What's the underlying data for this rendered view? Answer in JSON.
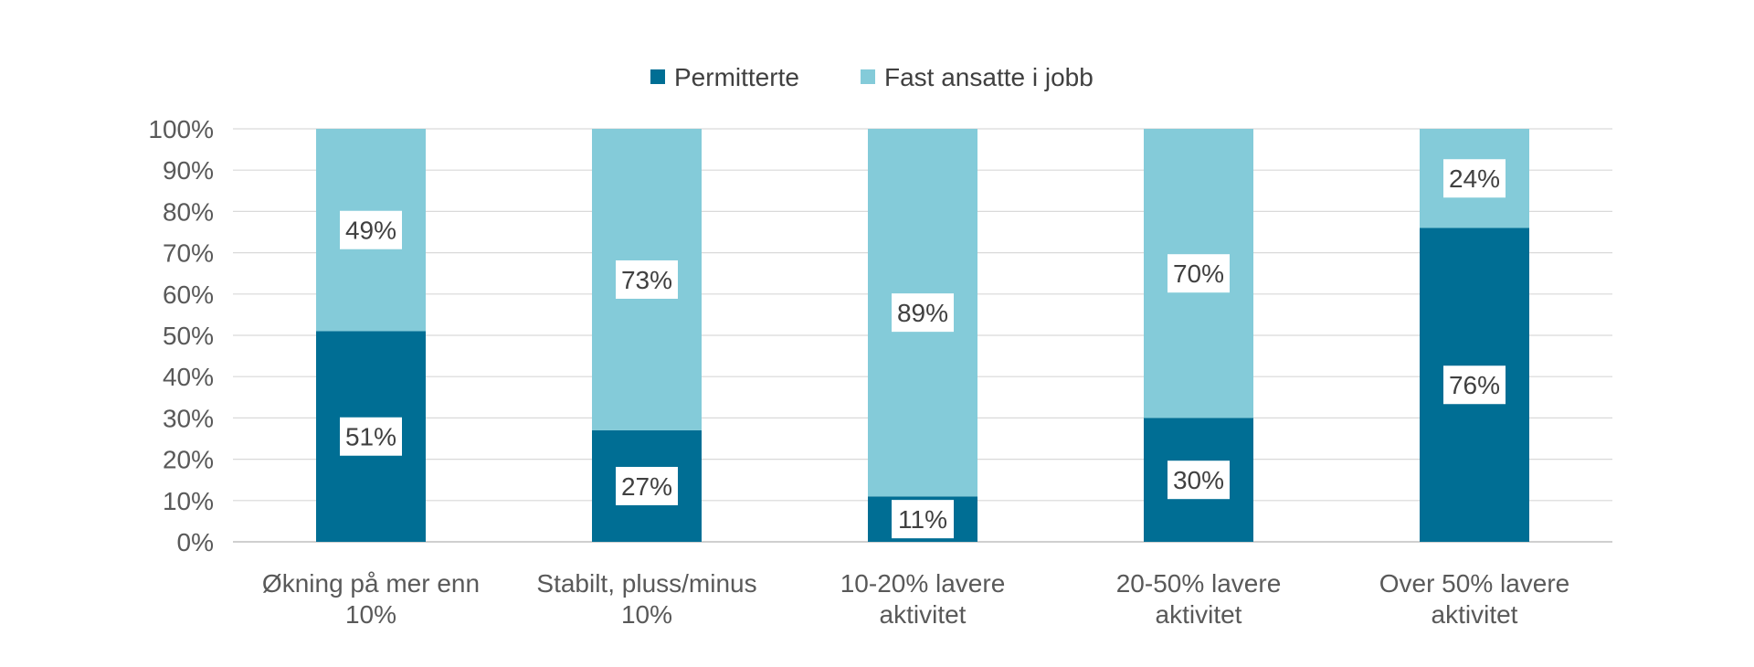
{
  "chart_data": {
    "type": "bar",
    "stacked": true,
    "percent": true,
    "title": "",
    "xlabel": "",
    "ylabel": "",
    "ylim": [
      0,
      100
    ],
    "yticks": [
      "0%",
      "10%",
      "20%",
      "30%",
      "40%",
      "50%",
      "60%",
      "70%",
      "80%",
      "90%",
      "100%"
    ],
    "grid": true,
    "legend_position": "top",
    "categories": [
      [
        "Økning på mer enn",
        "10%"
      ],
      [
        "Stabilt, pluss/minus",
        "10%"
      ],
      [
        "10-20% lavere",
        "aktivitet"
      ],
      [
        "20-50% lavere",
        "aktivitet"
      ],
      [
        "Over 50% lavere",
        "aktivitet"
      ]
    ],
    "series": [
      {
        "name": "Permitterte",
        "color": "#006e94",
        "values": [
          51,
          27,
          11,
          30,
          76
        ],
        "labels": [
          "51%",
          "27%",
          "11%",
          "30%",
          "76%"
        ]
      },
      {
        "name": "Fast ansatte i jobb",
        "color": "#84cbd9",
        "values": [
          49,
          73,
          89,
          70,
          24
        ],
        "labels": [
          "49%",
          "73%",
          "89%",
          "70%",
          "24%"
        ]
      }
    ]
  }
}
